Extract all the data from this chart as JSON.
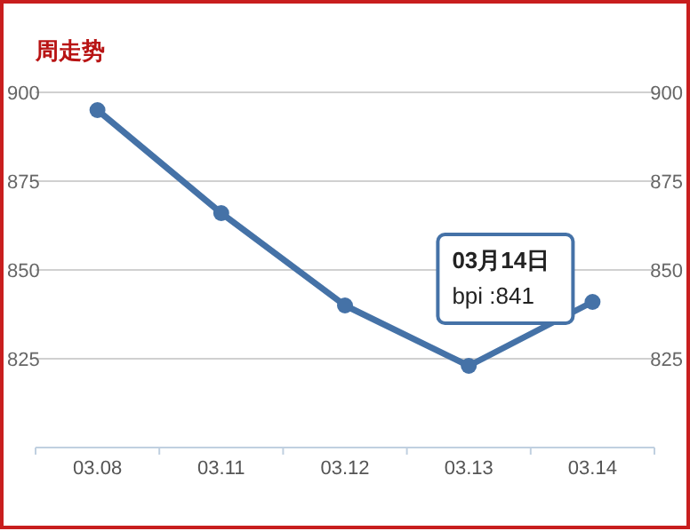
{
  "chart_data": {
    "type": "line",
    "title": "周走势",
    "categories": [
      "03.08",
      "03.11",
      "03.12",
      "03.13",
      "03.14"
    ],
    "series": [
      {
        "color": "#4572a7",
        "values": [
          895,
          866,
          840,
          823,
          841
        ]
      }
    ],
    "ylim": [
      800,
      900
    ],
    "yticks": [
      825,
      850,
      875,
      900
    ],
    "y2lim": [
      800,
      900
    ],
    "y2ticks": [
      825,
      850,
      875,
      900
    ],
    "grid": "y",
    "marker": "circle",
    "line_style": "solid",
    "annotations": [
      {
        "text": "03月14日\nbpi :841",
        "x": "03.14",
        "y": 841
      }
    ]
  }
}
